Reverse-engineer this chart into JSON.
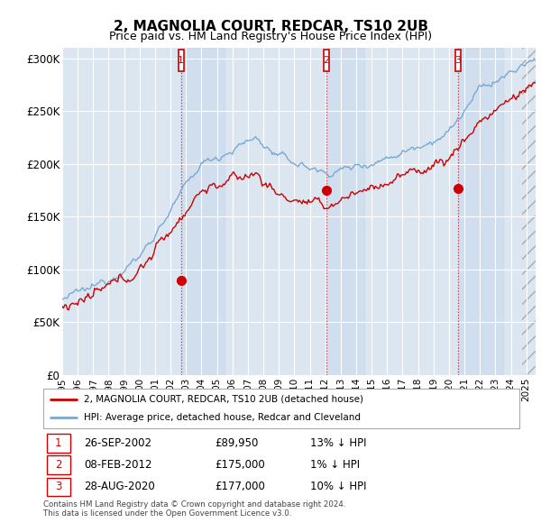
{
  "title": "2, MAGNOLIA COURT, REDCAR, TS10 2UB",
  "subtitle": "Price paid vs. HM Land Registry's House Price Index (HPI)",
  "ylim": [
    0,
    310000
  ],
  "yticks": [
    0,
    50000,
    100000,
    150000,
    200000,
    250000,
    300000
  ],
  "ytick_labels": [
    "£0",
    "£50K",
    "£100K",
    "£150K",
    "£200K",
    "£250K",
    "£300K"
  ],
  "legend_line1": "2, MAGNOLIA COURT, REDCAR, TS10 2UB (detached house)",
  "legend_line2": "HPI: Average price, detached house, Redcar and Cleveland",
  "sale1_date": "26-SEP-2002",
  "sale1_price": 89950,
  "sale1_hpi_text": "13% ↓ HPI",
  "sale2_date": "08-FEB-2012",
  "sale2_price": 175000,
  "sale2_hpi_text": "1% ↓ HPI",
  "sale3_date": "28-AUG-2020",
  "sale3_price": 177000,
  "sale3_hpi_text": "10% ↓ HPI",
  "footnote1": "Contains HM Land Registry data © Crown copyright and database right 2024.",
  "footnote2": "This data is licensed under the Open Government Licence v3.0.",
  "red_color": "#cc0000",
  "blue_color": "#7aa8d2",
  "plot_bg": "#dce6f1",
  "grid_color": "#ffffff",
  "vline_color": "#cc3333",
  "title_fontsize": 11,
  "subtitle_fontsize": 9
}
